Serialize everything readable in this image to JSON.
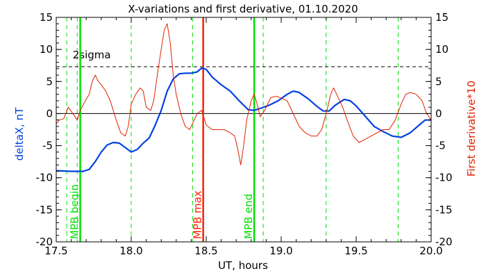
{
  "chart_data": {
    "type": "line",
    "title": "X-variations and first derivative, 01.10.2020",
    "xlabel": "UT, hours",
    "ylabel_left": "deltaX, nT",
    "ylabel_right": "First derivative*10",
    "xlim": [
      17.5,
      20.0
    ],
    "ylim": [
      -20,
      15
    ],
    "x_ticks": [
      "17.5",
      "18.0",
      "18.5",
      "19.0",
      "19.5",
      "20.0"
    ],
    "y_ticks": [
      "-20",
      "-15",
      "-10",
      "-5",
      "0",
      "5",
      "10",
      "15"
    ],
    "grid": false,
    "colors": {
      "deltax": "#0040e0",
      "derivative": "#e02000",
      "marker_green": "#00e000",
      "marker_red": "#ff2000",
      "threshold": "#000000",
      "text": "#000000"
    },
    "threshold": {
      "label": "2sigma",
      "value": 7.3
    },
    "zero_line": 0,
    "markers": [
      {
        "label": "MPB begin",
        "x": 17.66,
        "color": "green"
      },
      {
        "label": "MPB max",
        "x": 18.48,
        "color": "red"
      },
      {
        "label": "MPB end",
        "x": 18.82,
        "color": "green"
      }
    ],
    "dashed_markers_x": [
      17.57,
      17.64,
      18.0,
      18.41,
      18.88,
      19.3,
      19.78
    ],
    "series": [
      {
        "key": "deltax",
        "axis": "left",
        "points": [
          [
            17.5,
            -8.9
          ],
          [
            17.6,
            -9.0
          ],
          [
            17.68,
            -9.0
          ],
          [
            17.72,
            -8.7
          ],
          [
            17.76,
            -7.5
          ],
          [
            17.8,
            -6.0
          ],
          [
            17.84,
            -4.9
          ],
          [
            17.88,
            -4.5
          ],
          [
            17.92,
            -4.6
          ],
          [
            17.96,
            -5.3
          ],
          [
            18.0,
            -6.0
          ],
          [
            18.04,
            -5.6
          ],
          [
            18.08,
            -4.6
          ],
          [
            18.12,
            -3.8
          ],
          [
            18.16,
            -1.8
          ],
          [
            18.2,
            0.5
          ],
          [
            18.24,
            3.5
          ],
          [
            18.28,
            5.4
          ],
          [
            18.32,
            6.2
          ],
          [
            18.36,
            6.3
          ],
          [
            18.4,
            6.3
          ],
          [
            18.44,
            6.5
          ],
          [
            18.47,
            7.1
          ],
          [
            18.5,
            6.9
          ],
          [
            18.54,
            5.7
          ],
          [
            18.6,
            4.5
          ],
          [
            18.66,
            3.5
          ],
          [
            18.72,
            2.0
          ],
          [
            18.78,
            0.6
          ],
          [
            18.82,
            0.5
          ],
          [
            18.86,
            0.8
          ],
          [
            18.92,
            1.3
          ],
          [
            18.98,
            2.0
          ],
          [
            19.04,
            3.0
          ],
          [
            19.08,
            3.5
          ],
          [
            19.12,
            3.3
          ],
          [
            19.18,
            2.3
          ],
          [
            19.24,
            1.1
          ],
          [
            19.28,
            0.4
          ],
          [
            19.32,
            0.4
          ],
          [
            19.36,
            1.3
          ],
          [
            19.42,
            2.2
          ],
          [
            19.46,
            2.0
          ],
          [
            19.5,
            1.2
          ],
          [
            19.56,
            -0.4
          ],
          [
            19.62,
            -2.0
          ],
          [
            19.68,
            -2.8
          ],
          [
            19.74,
            -3.5
          ],
          [
            19.8,
            -3.7
          ],
          [
            19.86,
            -3.0
          ],
          [
            19.92,
            -1.8
          ],
          [
            19.96,
            -1.0
          ],
          [
            20.0,
            -1.0
          ]
        ]
      },
      {
        "key": "derivative",
        "axis": "right",
        "points": [
          [
            17.5,
            -1.6
          ],
          [
            17.52,
            -1.0
          ],
          [
            17.55,
            -0.8
          ],
          [
            17.58,
            1.0
          ],
          [
            17.61,
            0.0
          ],
          [
            17.64,
            -1.0
          ],
          [
            17.66,
            0.5
          ],
          [
            17.69,
            1.8
          ],
          [
            17.72,
            3.0
          ],
          [
            17.74,
            5.0
          ],
          [
            17.76,
            6.0
          ],
          [
            17.78,
            5.0
          ],
          [
            17.8,
            4.5
          ],
          [
            17.83,
            3.5
          ],
          [
            17.86,
            2.0
          ],
          [
            17.9,
            -1.0
          ],
          [
            17.93,
            -3.0
          ],
          [
            17.96,
            -3.5
          ],
          [
            17.98,
            -2.0
          ],
          [
            18.0,
            1.5
          ],
          [
            18.03,
            3.0
          ],
          [
            18.06,
            4.0
          ],
          [
            18.08,
            3.5
          ],
          [
            18.1,
            1.0
          ],
          [
            18.13,
            0.5
          ],
          [
            18.15,
            2.0
          ],
          [
            18.18,
            7.0
          ],
          [
            18.2,
            10.0
          ],
          [
            18.22,
            13.0
          ],
          [
            18.24,
            14.0
          ],
          [
            18.26,
            11.0
          ],
          [
            18.28,
            6.0
          ],
          [
            18.3,
            3.0
          ],
          [
            18.33,
            0.0
          ],
          [
            18.36,
            -2.0
          ],
          [
            18.39,
            -2.5
          ],
          [
            18.42,
            -1.0
          ],
          [
            18.44,
            0.0
          ],
          [
            18.47,
            0.5
          ],
          [
            18.5,
            -1.8
          ],
          [
            18.54,
            -2.5
          ],
          [
            18.58,
            -2.5
          ],
          [
            18.62,
            -2.5
          ],
          [
            18.66,
            -3.0
          ],
          [
            18.69,
            -3.5
          ],
          [
            18.71,
            -5.5
          ],
          [
            18.73,
            -8.0
          ],
          [
            18.75,
            -5.0
          ],
          [
            18.77,
            -1.0
          ],
          [
            18.8,
            2.0
          ],
          [
            18.82,
            3.0
          ],
          [
            18.84,
            1.5
          ],
          [
            18.86,
            -0.5
          ],
          [
            18.89,
            0.5
          ],
          [
            18.93,
            2.5
          ],
          [
            18.97,
            2.7
          ],
          [
            19.0,
            2.4
          ],
          [
            19.04,
            2.0
          ],
          [
            19.08,
            0.0
          ],
          [
            19.12,
            -2.0
          ],
          [
            19.16,
            -3.0
          ],
          [
            19.2,
            -3.5
          ],
          [
            19.24,
            -3.5
          ],
          [
            19.27,
            -2.5
          ],
          [
            19.3,
            0.0
          ],
          [
            19.33,
            3.0
          ],
          [
            19.35,
            4.0
          ],
          [
            19.38,
            2.5
          ],
          [
            19.41,
            1.0
          ],
          [
            19.44,
            -1.0
          ],
          [
            19.48,
            -3.5
          ],
          [
            19.52,
            -4.5
          ],
          [
            19.56,
            -4.0
          ],
          [
            19.6,
            -3.5
          ],
          [
            19.64,
            -3.0
          ],
          [
            19.68,
            -2.5
          ],
          [
            19.72,
            -2.5
          ],
          [
            19.76,
            -1.0
          ],
          [
            19.8,
            1.5
          ],
          [
            19.83,
            3.0
          ],
          [
            19.86,
            3.3
          ],
          [
            19.9,
            3.0
          ],
          [
            19.94,
            2.0
          ],
          [
            19.97,
            0.0
          ],
          [
            20.0,
            -1.0
          ]
        ]
      }
    ]
  }
}
